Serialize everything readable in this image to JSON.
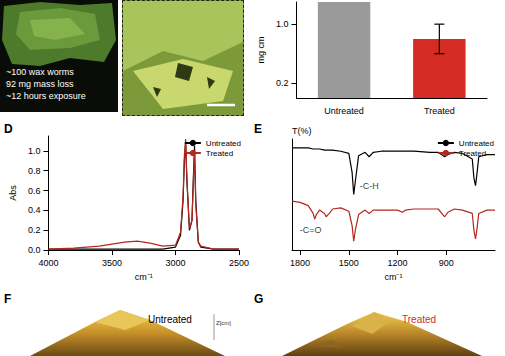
{
  "photo": {
    "lines": [
      "~100 wax worms",
      "92 mg mass loss",
      "~12 hours exposure"
    ]
  },
  "chart_data": [
    {
      "type": "bar",
      "ylabel": "mg cm",
      "categories": [
        "Untreated",
        "Treated"
      ],
      "values": [
        1.3,
        0.8
      ],
      "errors": [
        null,
        0.2
      ],
      "colors": [
        "#9a9a9a",
        "#d42b23"
      ],
      "ylim": [
        0,
        1.3
      ],
      "yticks": [
        0.2,
        {
          "value": 1,
          "label": "1.0"
        }
      ],
      "grid": false
    },
    {
      "type": "line",
      "panel": "D",
      "xlabel": "cm⁻¹",
      "ylabel": "Abs",
      "x": [
        4000,
        3800,
        3600,
        3500,
        3400,
        3300,
        3200,
        3100,
        3000,
        2960,
        2940,
        2930,
        2920,
        2910,
        2890,
        2870,
        2860,
        2850,
        2840,
        2820,
        2800,
        2700,
        2600,
        2500
      ],
      "series": [
        {
          "name": "Untreated",
          "color": "#000000",
          "values": [
            0.01,
            0.01,
            0.01,
            0.01,
            0.01,
            0.01,
            0.01,
            0.01,
            0.03,
            0.15,
            0.5,
            0.9,
            1.08,
            0.7,
            0.2,
            0.3,
            0.7,
            1.05,
            0.5,
            0.08,
            0.03,
            0.01,
            0.01,
            0.01
          ]
        },
        {
          "name": "Treated",
          "color": "#b5271f",
          "values": [
            0.01,
            0.02,
            0.04,
            0.06,
            0.08,
            0.09,
            0.07,
            0.04,
            0.05,
            0.18,
            0.55,
            0.95,
            1.12,
            0.72,
            0.22,
            0.3,
            0.65,
            0.98,
            0.45,
            0.08,
            0.04,
            0.01,
            0.01,
            0.01
          ]
        }
      ],
      "xlim": [
        4000,
        2500
      ],
      "xticks": [
        4000,
        3500,
        3000,
        2500
      ],
      "ylim": [
        0,
        1.15
      ],
      "yticks": [
        {
          "value": 0,
          "label": "0.0"
        },
        0.2,
        0.4,
        0.6,
        0.8,
        {
          "value": 1,
          "label": "1.0"
        }
      ],
      "legend": "upper right",
      "grid": false
    },
    {
      "type": "line",
      "panel": "E",
      "xlabel": "cm⁻¹",
      "ylabel": "T(%)",
      "x": [
        1850,
        1800,
        1750,
        1720,
        1710,
        1700,
        1680,
        1650,
        1640,
        1620,
        1600,
        1550,
        1500,
        1480,
        1470,
        1460,
        1440,
        1400,
        1375,
        1350,
        1300,
        1200,
        1170,
        1150,
        1100,
        1000,
        950,
        910,
        890,
        850,
        800,
        740,
        730,
        720,
        710,
        700,
        650,
        600
      ],
      "series": [
        {
          "name": "Untreated",
          "color": "#000000",
          "values": [
            92,
            92,
            92,
            91,
            91,
            91,
            91,
            90,
            90,
            90,
            90,
            89,
            87,
            70,
            50,
            62,
            85,
            88,
            84,
            88,
            89,
            89,
            89,
            89,
            89,
            88,
            88,
            84,
            86,
            88,
            87,
            82,
            65,
            58,
            70,
            84,
            86,
            86
          ]
        },
        {
          "name": "Treated",
          "color": "#b5271f",
          "values": [
            44,
            43,
            40,
            33,
            28,
            32,
            36,
            33,
            30,
            33,
            37,
            38,
            35,
            22,
            8,
            18,
            32,
            36,
            33,
            36,
            36,
            36,
            34,
            36,
            37,
            37,
            37,
            30,
            34,
            37,
            36,
            33,
            18,
            10,
            20,
            33,
            36,
            36
          ]
        }
      ],
      "xlim": [
        1850,
        600
      ],
      "xticks": [
        1800,
        1500,
        1200,
        900
      ],
      "ylim": [
        0,
        100
      ],
      "tick_labels": "x",
      "annotations": [
        {
          "text": "-C-H",
          "x": 1375,
          "y": 58
        },
        {
          "text": "-C=O",
          "x": 1735,
          "y": 18
        }
      ],
      "legend": "upper right",
      "grid": false
    }
  ],
  "surfaces": [
    {
      "panel": "F",
      "title": "Untreated",
      "axis_label": "Z[cm]"
    },
    {
      "panel": "G",
      "title": "Treated"
    }
  ]
}
